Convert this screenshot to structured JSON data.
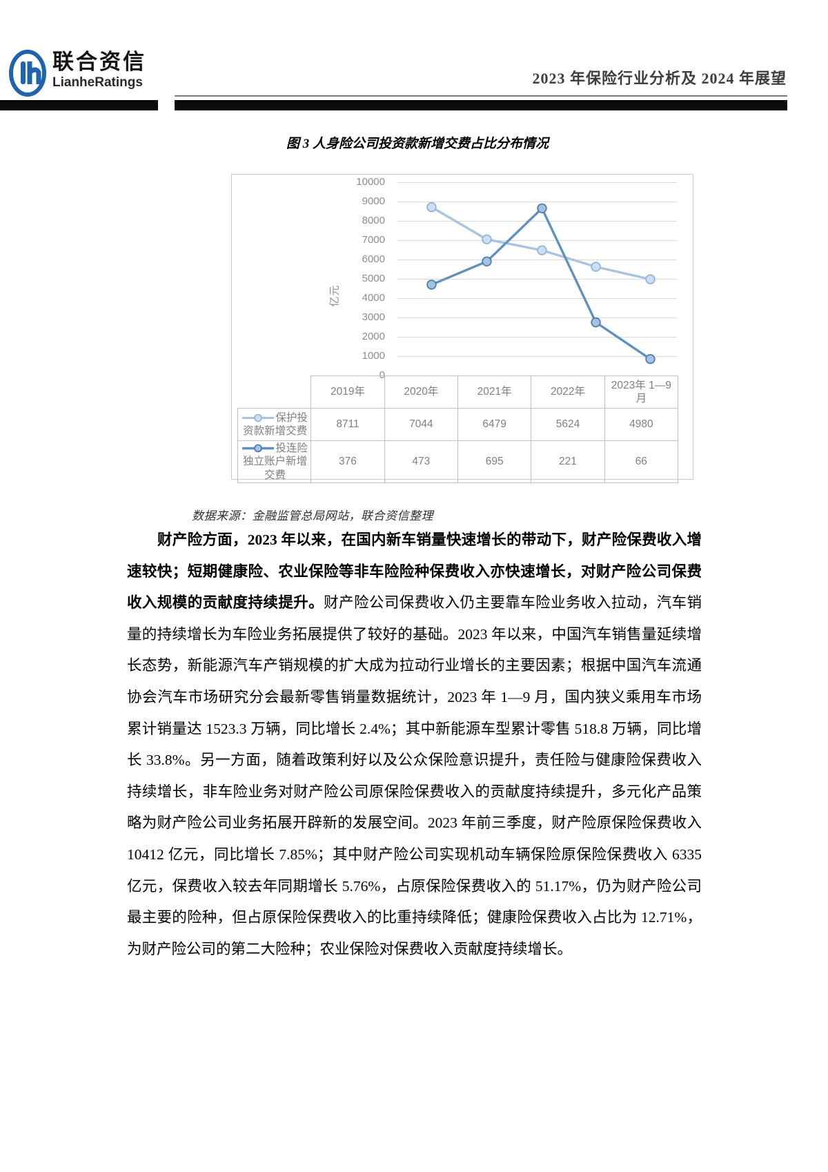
{
  "theme": {
    "header_bar": "#0b0b0b",
    "header_rule": "#7a7a7a",
    "logo_blue": "#1f63ae",
    "grid_color": "#d9d9d9",
    "table_border": "#bfbfbf",
    "axis_text": "#8c8c8c"
  },
  "header": {
    "brand_cn": "联合资信",
    "brand_en": "LianheRatings",
    "doc_title": "2023 年保险行业分析及 2024 年展望"
  },
  "figure": {
    "source_note": "数据来源：金融监管总局网站，联合资信整理"
  },
  "chart_data": {
    "type": "line",
    "title": "图 3  人身险公司投资款新增交费占比分布情况",
    "ylabel": "亿元",
    "ylim": [
      0,
      10000
    ],
    "ytick_step": 1000,
    "grid": true,
    "legend_position": "data-table-left",
    "categories": [
      "2019年",
      "2020年",
      "2021年",
      "2022年",
      "2023年 1—9月"
    ],
    "series": [
      {
        "name": "保护投资款新增交费",
        "values": [
          8711,
          7044,
          6479,
          5624,
          4980
        ],
        "plotted": [
          8711,
          7044,
          6479,
          5624,
          4980
        ],
        "color": "#a9c4e1",
        "marker_fill": "#cde0f2",
        "marker_stroke": "#8fb3d9"
      },
      {
        "name": "投连险独立账户新增交费",
        "values": [
          376,
          473,
          695,
          221,
          66
        ],
        "plotted": [
          4700,
          5900,
          8650,
          2750,
          850
        ],
        "color": "#6090bf",
        "marker_fill": "#a3c3e5",
        "marker_stroke": "#4d7dad"
      }
    ]
  },
  "body": {
    "lead_bold": "财产险方面，2023 年以来，在国内新车销量快速增长的带动下，财产险保费收入增速较快；短期健康险、农业保险等非车险险种保费收入亦快速增长，对财产险公司保费收入规模的贡献度持续提升。",
    "rest": "财产险公司保费收入仍主要靠车险业务收入拉动，汽车销量的持续增长为车险业务拓展提供了较好的基础。2023 年以来，中国汽车销售量延续增长态势，新能源汽车产销规模的扩大成为拉动行业增长的主要因素；根据中国汽车流通协会汽车市场研究分会最新零售销量数据统计，2023 年 1—9 月，国内狭义乘用车市场累计销量达 1523.3 万辆，同比增长 2.4%；其中新能源车型累计零售 518.8 万辆，同比增长 33.8%。另一方面，随着政策利好以及公众保险意识提升，责任险与健康险保费收入持续增长，非车险业务对财产险公司原保险保费收入的贡献度持续提升，多元化产品策略为财产险公司业务拓展开辟新的发展空间。2023 年前三季度，财产险原保险保费收入 10412 亿元，同比增长 7.85%；其中财产险公司实现机动车辆保险原保险保费收入 6335 亿元，保费收入较去年同期增长 5.76%，占原保险保费收入的 51.17%，仍为财产险公司最主要的险种，但占原保险保费收入的比重持续降低；健康险保费收入占比为 12.71%，为财产险公司的第二大险种；农业保险对保费收入贡献度持续增长。"
  }
}
